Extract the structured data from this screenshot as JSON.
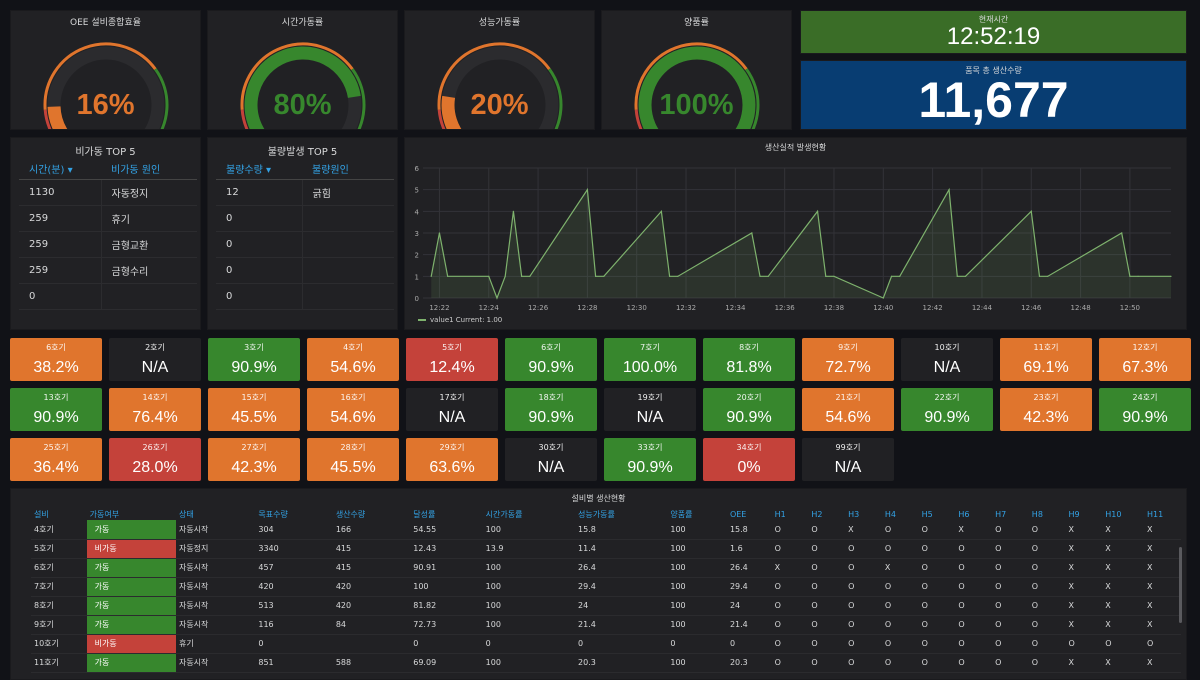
{
  "colors": {
    "green": "#37872d",
    "orange": "#e0752d",
    "red": "#c4423a",
    "gauge_track": "#2b2b2e",
    "time_bg": "#3a6d27",
    "total_bg": "#083d72",
    "line": "#7eb26d"
  },
  "gauges": [
    {
      "title": "OEE 설비종합효율",
      "value": "16%",
      "level": 0.16,
      "color": "#e0752d"
    },
    {
      "title": "시간가동률",
      "value": "80%",
      "level": 0.8,
      "color": "#37872d"
    },
    {
      "title": "성능가동률",
      "value": "20%",
      "level": 0.2,
      "color": "#e0752d"
    },
    {
      "title": "양품률",
      "value": "100%",
      "level": 1.0,
      "color": "#37872d"
    }
  ],
  "clock": {
    "title": "현재시간",
    "value": "12:52:19"
  },
  "total": {
    "title": "품목 총 생산수량",
    "value": "11,677"
  },
  "downtime": {
    "title": "비가동 TOP 5",
    "headers": [
      "시간(분) ▾",
      "비가동 원인"
    ],
    "rows": [
      [
        "1130",
        "자동정지"
      ],
      [
        "259",
        "휴기"
      ],
      [
        "259",
        "금형교환"
      ],
      [
        "259",
        "금형수리"
      ],
      [
        "0",
        ""
      ]
    ]
  },
  "defect": {
    "title": "불량발생 TOP 5",
    "headers": [
      "불량수량 ▾",
      "불량원인"
    ],
    "rows": [
      [
        "12",
        "긁힘"
      ],
      [
        "0",
        ""
      ],
      [
        "0",
        ""
      ],
      [
        "0",
        ""
      ],
      [
        "0",
        ""
      ]
    ]
  },
  "chart_data": {
    "type": "line",
    "title": "생산실적 발생현황",
    "x": [
      "12:21:40",
      "12:22:00",
      "12:22:20",
      "12:24:00",
      "12:24:20",
      "12:24:40",
      "12:25:00",
      "12:25:20",
      "12:25:40",
      "12:28:00",
      "12:28:20",
      "12:28:40",
      "12:31:00",
      "12:31:20",
      "12:31:40",
      "12:34:40",
      "12:35:00",
      "12:35:20",
      "12:37:20",
      "12:37:40",
      "12:38:00",
      "12:40:00",
      "12:40:20",
      "12:40:40",
      "12:42:40",
      "12:43:00",
      "12:43:20",
      "12:46:00",
      "12:46:20",
      "12:46:40",
      "12:49:40",
      "12:50:00",
      "12:50:20",
      "12:51:40"
    ],
    "series": [
      {
        "name": "value1",
        "values": [
          1,
          3,
          1,
          1,
          0,
          1,
          4,
          1,
          1,
          5,
          1,
          1,
          4,
          1,
          1,
          3,
          1,
          1,
          4,
          1,
          1,
          0,
          1,
          1,
          5,
          1,
          1,
          4,
          1,
          1,
          3,
          1,
          1,
          1
        ]
      }
    ],
    "xticks": [
      "12:22",
      "12:24",
      "12:26",
      "12:28",
      "12:30",
      "12:32",
      "12:34",
      "12:36",
      "12:38",
      "12:40",
      "12:42",
      "12:44",
      "12:46",
      "12:48",
      "12:50"
    ],
    "yticks": [
      "0",
      "1",
      "2",
      "3",
      "4",
      "5",
      "6"
    ],
    "ylim": [
      0,
      6
    ],
    "grid": true,
    "legend_text": "value1  Current: 1.00",
    "legend": "bottom-left"
  },
  "machines": [
    {
      "name": "6호기",
      "value": "38.2%",
      "status": "o"
    },
    {
      "name": "2호기",
      "value": "N/A",
      "status": "n"
    },
    {
      "name": "3호기",
      "value": "90.9%",
      "status": "g"
    },
    {
      "name": "4호기",
      "value": "54.6%",
      "status": "o"
    },
    {
      "name": "5호기",
      "value": "12.4%",
      "status": "r"
    },
    {
      "name": "6호기",
      "value": "90.9%",
      "status": "g"
    },
    {
      "name": "7호기",
      "value": "100.0%",
      "status": "g"
    },
    {
      "name": "8호기",
      "value": "81.8%",
      "status": "g"
    },
    {
      "name": "9호기",
      "value": "72.7%",
      "status": "o"
    },
    {
      "name": "10호기",
      "value": "N/A",
      "status": "n"
    },
    {
      "name": "11호기",
      "value": "69.1%",
      "status": "o"
    },
    {
      "name": "12호기",
      "value": "67.3%",
      "status": "o"
    },
    {
      "name": "13호기",
      "value": "90.9%",
      "status": "g"
    },
    {
      "name": "14호기",
      "value": "76.4%",
      "status": "o"
    },
    {
      "name": "15호기",
      "value": "45.5%",
      "status": "o"
    },
    {
      "name": "16호기",
      "value": "54.6%",
      "status": "o"
    },
    {
      "name": "17호기",
      "value": "N/A",
      "status": "n"
    },
    {
      "name": "18호기",
      "value": "90.9%",
      "status": "g"
    },
    {
      "name": "19호기",
      "value": "N/A",
      "status": "n"
    },
    {
      "name": "20호기",
      "value": "90.9%",
      "status": "g"
    },
    {
      "name": "21호기",
      "value": "54.6%",
      "status": "o"
    },
    {
      "name": "22호기",
      "value": "90.9%",
      "status": "g"
    },
    {
      "name": "23호기",
      "value": "42.3%",
      "status": "o"
    },
    {
      "name": "24호기",
      "value": "90.9%",
      "status": "g"
    },
    {
      "name": "25호기",
      "value": "36.4%",
      "status": "o"
    },
    {
      "name": "26호기",
      "value": "28.0%",
      "status": "r"
    },
    {
      "name": "27호기",
      "value": "42.3%",
      "status": "o"
    },
    {
      "name": "28호기",
      "value": "45.5%",
      "status": "o"
    },
    {
      "name": "29호기",
      "value": "63.6%",
      "status": "o"
    },
    {
      "name": "30호기",
      "value": "N/A",
      "status": "n"
    },
    {
      "name": "33호기",
      "value": "90.9%",
      "status": "g"
    },
    {
      "name": "34호기",
      "value": "0%",
      "status": "r"
    },
    {
      "name": "99호기",
      "value": "N/A",
      "status": "n"
    }
  ],
  "table": {
    "title": "설비별 생산현황",
    "headers": [
      "설비",
      "가동여부",
      "상태",
      "목표수량",
      "생산수량",
      "달성률",
      "시간가동률",
      "성능가동률",
      "양품률",
      "OEE",
      "H1",
      "H2",
      "H3",
      "H4",
      "H5",
      "H6",
      "H7",
      "H8",
      "H9",
      "H10",
      "H11"
    ],
    "rows": [
      [
        "4호기",
        "가동",
        "자동시작",
        "304",
        "166",
        "54.55",
        "100",
        "15.8",
        "100",
        "15.8",
        "O",
        "O",
        "X",
        "O",
        "O",
        "X",
        "O",
        "O",
        "X",
        "X",
        "X"
      ],
      [
        "5호기",
        "비가동",
        "자동정지",
        "3340",
        "415",
        "12.43",
        "13.9",
        "11.4",
        "100",
        "1.6",
        "O",
        "O",
        "O",
        "O",
        "O",
        "O",
        "O",
        "O",
        "X",
        "X",
        "X"
      ],
      [
        "6호기",
        "가동",
        "자동시작",
        "457",
        "415",
        "90.91",
        "100",
        "26.4",
        "100",
        "26.4",
        "X",
        "O",
        "O",
        "X",
        "O",
        "O",
        "O",
        "O",
        "X",
        "X",
        "X"
      ],
      [
        "7호기",
        "가동",
        "자동시작",
        "420",
        "420",
        "100",
        "100",
        "29.4",
        "100",
        "29.4",
        "O",
        "O",
        "O",
        "O",
        "O",
        "O",
        "O",
        "O",
        "X",
        "X",
        "X"
      ],
      [
        "8호기",
        "가동",
        "자동시작",
        "513",
        "420",
        "81.82",
        "100",
        "24",
        "100",
        "24",
        "O",
        "O",
        "O",
        "O",
        "O",
        "O",
        "O",
        "O",
        "X",
        "X",
        "X"
      ],
      [
        "9호기",
        "가동",
        "자동시작",
        "116",
        "84",
        "72.73",
        "100",
        "21.4",
        "100",
        "21.4",
        "O",
        "O",
        "O",
        "O",
        "O",
        "O",
        "O",
        "O",
        "X",
        "X",
        "X"
      ],
      [
        "10호기",
        "비가동",
        "휴기",
        "0",
        "",
        "0",
        "0",
        "0",
        "0",
        "0",
        "O",
        "O",
        "O",
        "O",
        "O",
        "O",
        "O",
        "O",
        "O",
        "O",
        "O"
      ],
      [
        "11호기",
        "가동",
        "자동시작",
        "851",
        "588",
        "69.09",
        "100",
        "20.3",
        "100",
        "20.3",
        "O",
        "O",
        "O",
        "O",
        "O",
        "O",
        "O",
        "O",
        "X",
        "X",
        "X"
      ]
    ]
  }
}
